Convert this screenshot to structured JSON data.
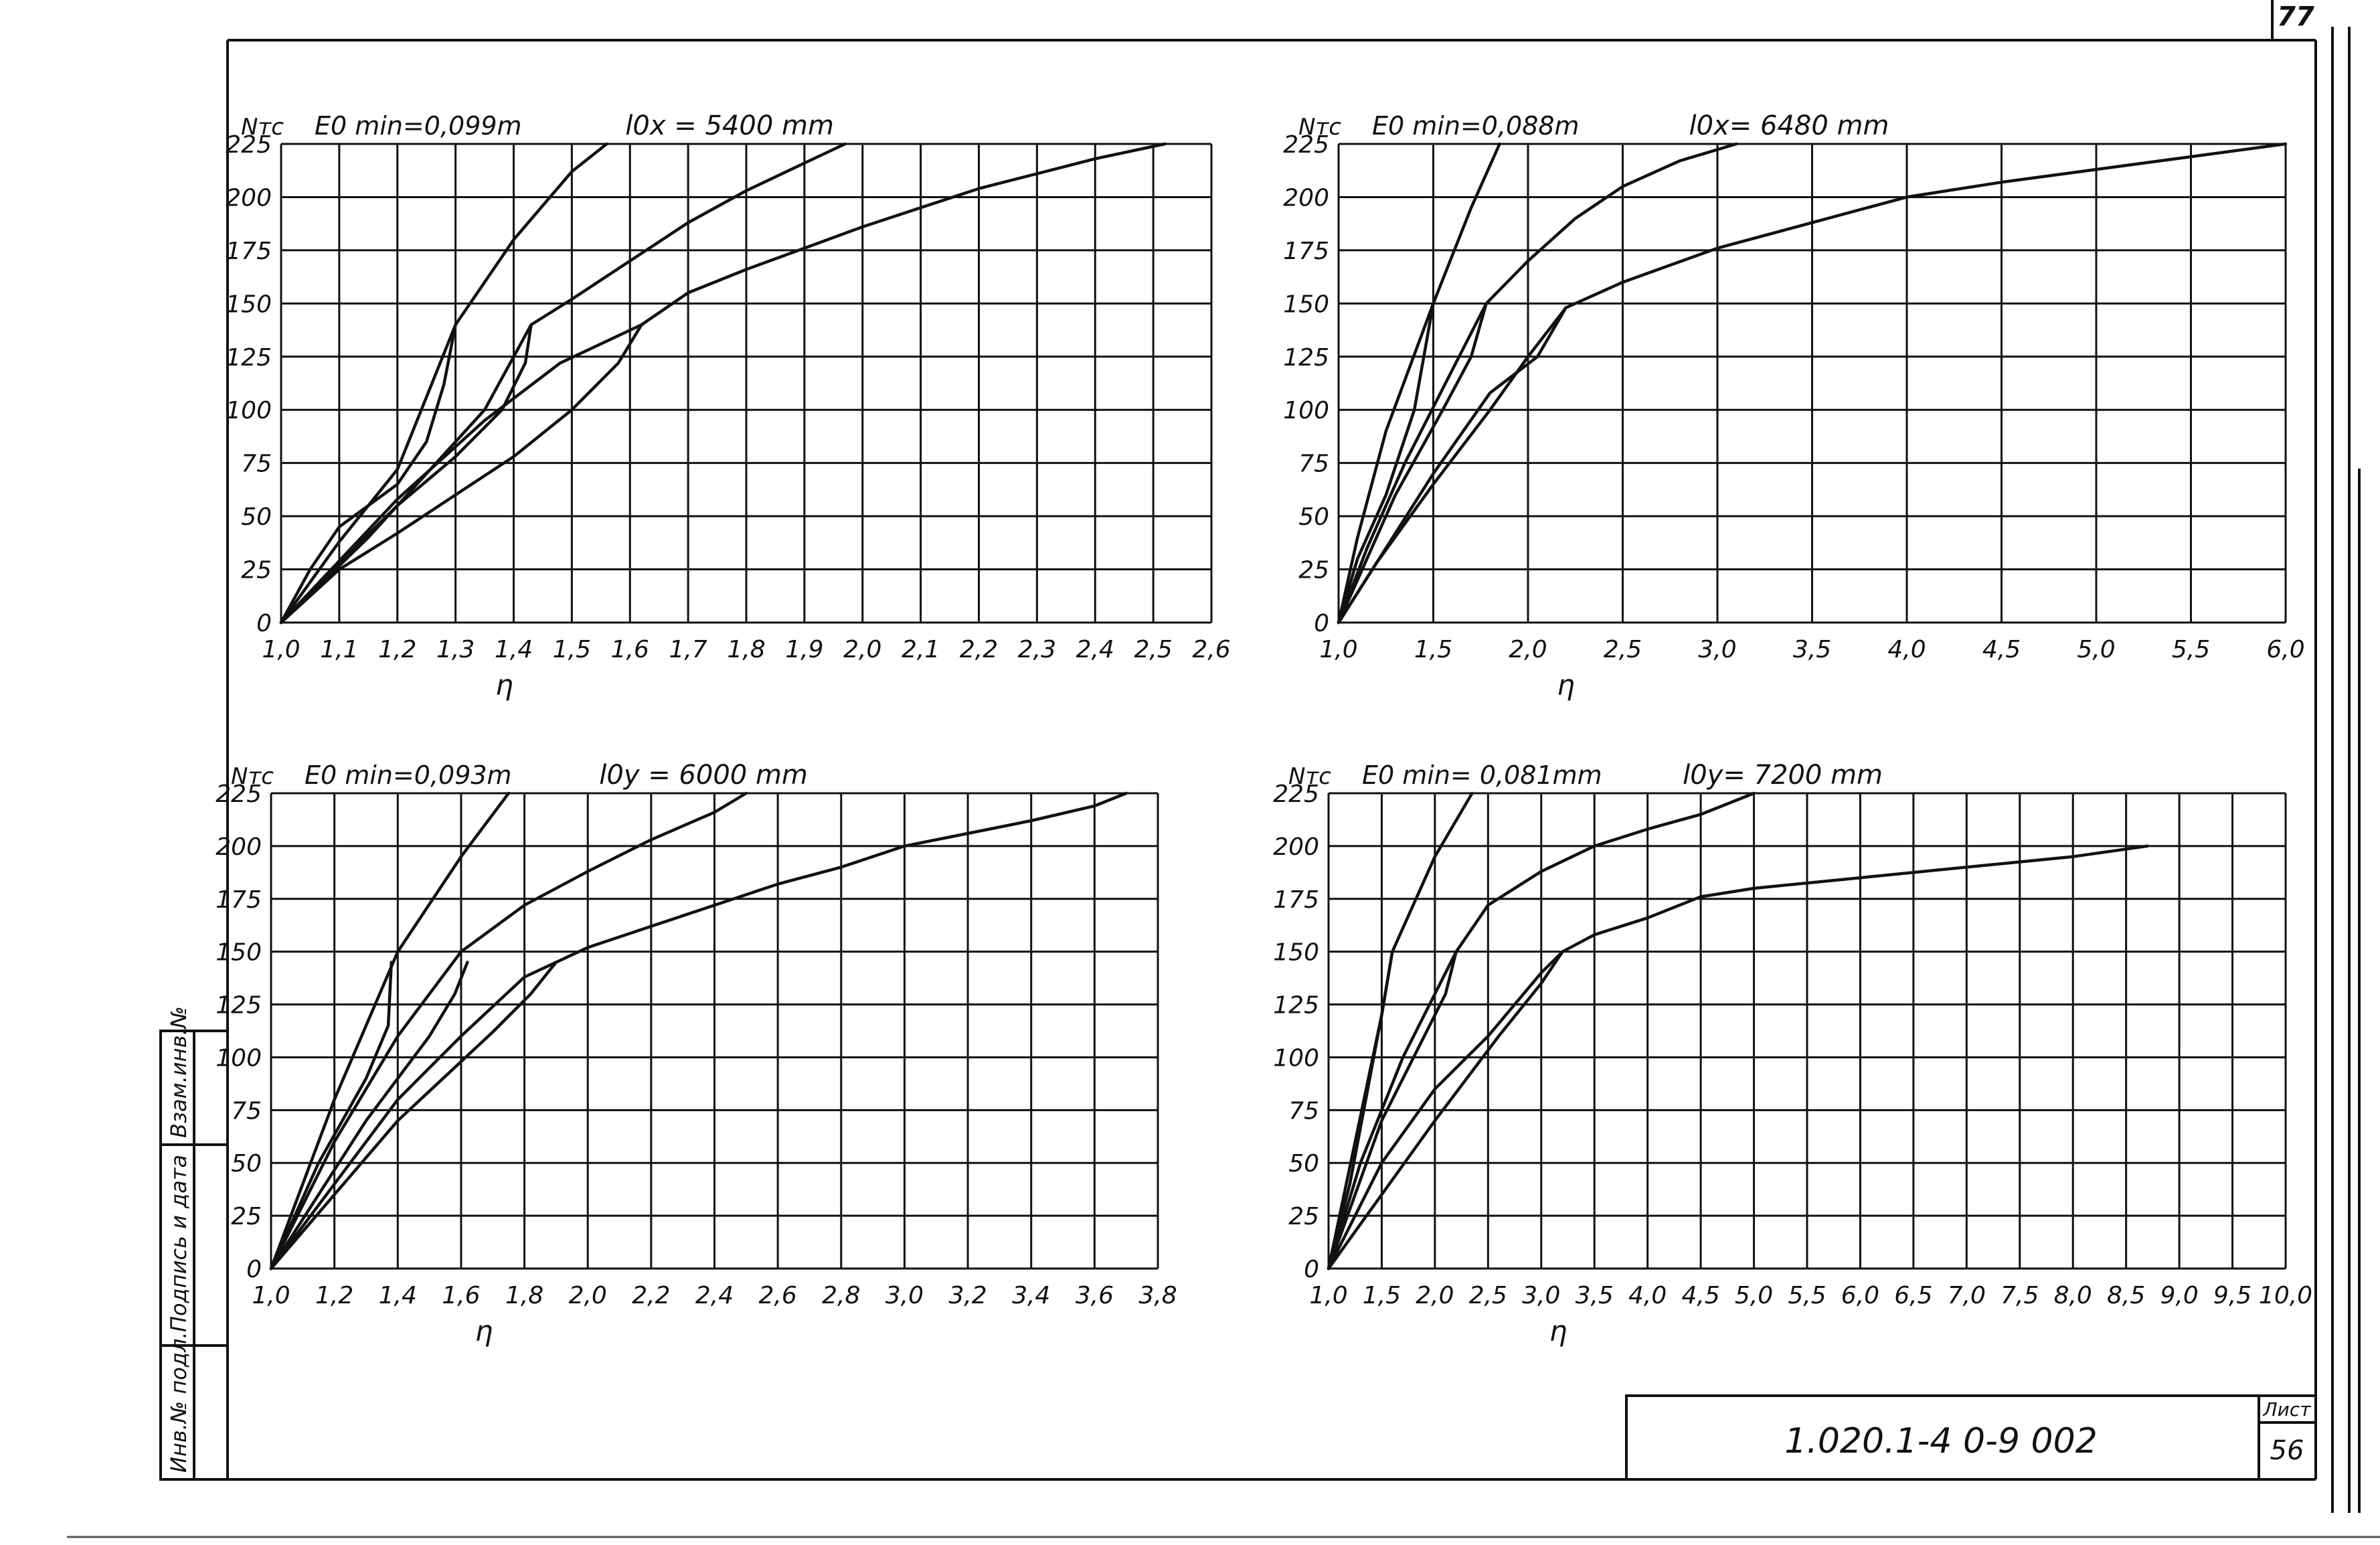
{
  "sheet": {
    "page_number": "77",
    "code": "1.020.1-4  0-9  002",
    "list_label": "Лист",
    "list_number": "56",
    "side_stamp": [
      "Инв.№ подл.",
      "Подпись и дата",
      "Взам.инв.№"
    ]
  },
  "chart_data": [
    {
      "id": "top-left",
      "type": "line",
      "y_label": "Nтс",
      "title_left": "E0 min=0,099m",
      "title_right": "l0x = 5400 mm",
      "xlabel": "η",
      "xticks": [
        1.0,
        1.1,
        1.2,
        1.3,
        1.4,
        1.5,
        1.6,
        1.7,
        1.8,
        1.9,
        2.0,
        2.1,
        2.2,
        2.3,
        2.4,
        2.5,
        2.6
      ],
      "xtick_labels": [
        "1,0",
        "1,1",
        "1,2",
        "1,3",
        "1,4",
        "1,5",
        "1,6",
        "1,7",
        "1,8",
        "1,9",
        "2,0",
        "2,1",
        "2,2",
        "2,3",
        "2,4",
        "2,5",
        "2,6"
      ],
      "yticks": [
        0,
        25,
        50,
        75,
        100,
        125,
        150,
        175,
        200,
        225
      ],
      "ytick_labels": [
        "0",
        "25",
        "50",
        "75",
        "100",
        "125",
        "150",
        "175",
        "200",
        "225"
      ],
      "xlim": [
        1.0,
        2.6
      ],
      "ylim": [
        0,
        225
      ],
      "grid": true,
      "series": [
        {
          "points": [
            [
              1.0,
              0
            ],
            [
              1.1,
              38
            ],
            [
              1.2,
              72
            ],
            [
              1.3,
              140
            ],
            [
              1.4,
              180
            ],
            [
              1.5,
              212
            ],
            [
              1.56,
              225
            ]
          ]
        },
        {
          "points": [
            [
              1.0,
              0
            ],
            [
              1.1,
              28
            ],
            [
              1.2,
              55
            ],
            [
              1.3,
              78
            ],
            [
              1.38,
              100
            ],
            [
              1.42,
              122
            ],
            [
              1.43,
              140
            ],
            [
              1.5,
              152
            ],
            [
              1.6,
              170
            ],
            [
              1.7,
              188
            ],
            [
              1.8,
              203
            ],
            [
              1.9,
              216
            ],
            [
              1.97,
              225
            ]
          ]
        },
        {
          "points": [
            [
              1.0,
              0
            ],
            [
              1.1,
              25
            ],
            [
              1.2,
              42
            ],
            [
              1.3,
              60
            ],
            [
              1.4,
              78
            ],
            [
              1.5,
              100
            ],
            [
              1.58,
              122
            ],
            [
              1.62,
              140
            ],
            [
              1.7,
              155
            ],
            [
              1.8,
              166
            ],
            [
              1.9,
              176
            ],
            [
              2.0,
              186
            ],
            [
              2.1,
              195
            ],
            [
              2.2,
              204
            ],
            [
              2.3,
              211
            ],
            [
              2.4,
              218
            ],
            [
              2.52,
              225
            ]
          ]
        },
        {
          "points": [
            [
              1.0,
              0
            ],
            [
              1.05,
              25
            ],
            [
              1.1,
              45
            ],
            [
              1.2,
              65
            ],
            [
              1.25,
              85
            ],
            [
              1.28,
              112
            ],
            [
              1.3,
              140
            ]
          ]
        },
        {
          "points": [
            [
              1.0,
              0
            ],
            [
              1.15,
              40
            ],
            [
              1.25,
              70
            ],
            [
              1.35,
              100
            ],
            [
              1.43,
              140
            ]
          ]
        },
        {
          "points": [
            [
              1.0,
              0
            ],
            [
              1.2,
              58
            ],
            [
              1.35,
              95
            ],
            [
              1.48,
              122
            ],
            [
              1.62,
              140
            ]
          ]
        }
      ]
    },
    {
      "id": "top-right",
      "type": "line",
      "y_label": "Nтс",
      "title_left": "E0 min=0,088m",
      "title_right": "l0x= 6480 mm",
      "xlabel": "η",
      "xticks": [
        1.0,
        1.5,
        2.0,
        2.5,
        3.0,
        3.5,
        4.0,
        4.5,
        5.0,
        5.5,
        6.0
      ],
      "xtick_labels": [
        "1,0",
        "1,5",
        "2,0",
        "2,5",
        "3,0",
        "3,5",
        "4,0",
        "4,5",
        "5,0",
        "5,5",
        "6,0"
      ],
      "yticks": [
        0,
        25,
        50,
        75,
        100,
        125,
        150,
        175,
        200,
        225
      ],
      "ytick_labels": [
        "0",
        "25",
        "50",
        "75",
        "100",
        "125",
        "150",
        "175",
        "200",
        "225"
      ],
      "xlim": [
        1.0,
        6.0
      ],
      "ylim": [
        0,
        225
      ],
      "grid": true,
      "series": [
        {
          "points": [
            [
              1.0,
              0
            ],
            [
              1.1,
              40
            ],
            [
              1.25,
              90
            ],
            [
              1.5,
              150
            ],
            [
              1.7,
              195
            ],
            [
              1.85,
              225
            ]
          ]
        },
        {
          "points": [
            [
              1.0,
              0
            ],
            [
              1.15,
              35
            ],
            [
              1.35,
              75
            ],
            [
              1.55,
              110
            ],
            [
              1.78,
              150
            ],
            [
              2.0,
              170
            ],
            [
              2.25,
              190
            ],
            [
              2.5,
              205
            ],
            [
              2.8,
              217
            ],
            [
              3.1,
              225
            ]
          ]
        },
        {
          "points": [
            [
              1.0,
              0
            ],
            [
              1.2,
              28
            ],
            [
              1.5,
              65
            ],
            [
              1.8,
              100
            ],
            [
              2.0,
              125
            ],
            [
              2.2,
              148
            ],
            [
              2.5,
              160
            ],
            [
              3.0,
              176
            ],
            [
              3.5,
              188
            ],
            [
              4.0,
              200
            ],
            [
              4.5,
              207
            ],
            [
              5.0,
              213
            ],
            [
              5.5,
              219
            ],
            [
              6.0,
              225
            ]
          ]
        },
        {
          "points": [
            [
              1.0,
              0
            ],
            [
              1.1,
              30
            ],
            [
              1.25,
              60
            ],
            [
              1.4,
              100
            ],
            [
              1.5,
              150
            ]
          ]
        },
        {
          "points": [
            [
              1.0,
              0
            ],
            [
              1.3,
              60
            ],
            [
              1.55,
              100
            ],
            [
              1.7,
              125
            ],
            [
              1.78,
              150
            ]
          ]
        },
        {
          "points": [
            [
              1.0,
              0
            ],
            [
              1.5,
              70
            ],
            [
              1.8,
              108
            ],
            [
              2.05,
              125
            ],
            [
              2.2,
              148
            ]
          ]
        }
      ]
    },
    {
      "id": "bottom-left",
      "type": "line",
      "y_label": "Nтс",
      "title_left": "E0 min=0,093m",
      "title_right": "l0y = 6000 mm",
      "xlabel": "η",
      "xticks": [
        1.0,
        1.2,
        1.4,
        1.6,
        1.8,
        2.0,
        2.2,
        2.4,
        2.6,
        2.8,
        3.0,
        3.2,
        3.4,
        3.6,
        3.8
      ],
      "xtick_labels": [
        "1,0",
        "1,2",
        "1,4",
        "1,6",
        "1,8",
        "2,0",
        "2,2",
        "2,4",
        "2,6",
        "2,8",
        "3,0",
        "3,2",
        "3,4",
        "3,6",
        "3,8"
      ],
      "yticks": [
        0,
        25,
        50,
        75,
        100,
        125,
        150,
        175,
        200,
        225
      ],
      "ytick_labels": [
        "0",
        "25",
        "50",
        "75",
        "100",
        "125",
        "150",
        "175",
        "200",
        "225"
      ],
      "xlim": [
        1.0,
        3.8
      ],
      "ylim": [
        0,
        225
      ],
      "grid": true,
      "series": [
        {
          "points": [
            [
              1.0,
              0
            ],
            [
              1.2,
              80
            ],
            [
              1.4,
              150
            ],
            [
              1.6,
              195
            ],
            [
              1.75,
              225
            ]
          ]
        },
        {
          "points": [
            [
              1.0,
              0
            ],
            [
              1.2,
              60
            ],
            [
              1.4,
              110
            ],
            [
              1.6,
              150
            ],
            [
              1.8,
              172
            ],
            [
              2.0,
              188
            ],
            [
              2.2,
              203
            ],
            [
              2.4,
              216
            ],
            [
              2.5,
              225
            ]
          ]
        },
        {
          "points": [
            [
              1.0,
              0
            ],
            [
              1.2,
              40
            ],
            [
              1.4,
              80
            ],
            [
              1.6,
              110
            ],
            [
              1.8,
              138
            ],
            [
              2.0,
              152
            ],
            [
              2.2,
              162
            ],
            [
              2.4,
              172
            ],
            [
              2.6,
              182
            ],
            [
              2.8,
              190
            ],
            [
              3.0,
              200
            ],
            [
              3.2,
              206
            ],
            [
              3.4,
              212
            ],
            [
              3.6,
              219
            ],
            [
              3.7,
              225
            ]
          ]
        },
        {
          "points": [
            [
              1.0,
              0
            ],
            [
              1.15,
              50
            ],
            [
              1.3,
              90
            ],
            [
              1.37,
              115
            ],
            [
              1.38,
              145
            ]
          ]
        },
        {
          "points": [
            [
              1.0,
              0
            ],
            [
              1.3,
              70
            ],
            [
              1.5,
              110
            ],
            [
              1.58,
              130
            ],
            [
              1.62,
              145
            ]
          ]
        },
        {
          "points": [
            [
              1.0,
              0
            ],
            [
              1.4,
              70
            ],
            [
              1.7,
              112
            ],
            [
              1.82,
              130
            ],
            [
              1.9,
              145
            ]
          ]
        }
      ]
    },
    {
      "id": "bottom-right",
      "type": "line",
      "y_label": "Nтс",
      "title_left": "E0 min= 0,081mm",
      "title_right": "l0y= 7200 mm",
      "xlabel": "η",
      "xticks": [
        1.0,
        1.5,
        2.0,
        2.5,
        3.0,
        3.5,
        4.0,
        4.5,
        5.0,
        5.5,
        6.0,
        6.5,
        7.0,
        7.5,
        8.0,
        8.5,
        9.0,
        9.5,
        10.0
      ],
      "xtick_labels": [
        "1,0",
        "1,5",
        "2,0",
        "2,5",
        "3,0",
        "3,5",
        "4,0",
        "4,5",
        "5,0",
        "5,5",
        "6,0",
        "6,5",
        "7,0",
        "7,5",
        "8,0",
        "8,5",
        "9,0",
        "9,5",
        "10,0"
      ],
      "yticks": [
        0,
        25,
        50,
        75,
        100,
        125,
        150,
        175,
        200,
        225
      ],
      "ytick_labels": [
        "0",
        "25",
        "50",
        "75",
        "100",
        "125",
        "150",
        "175",
        "200",
        "225"
      ],
      "xlim": [
        1.0,
        10.0
      ],
      "ylim": [
        0,
        225
      ],
      "grid": true,
      "series": [
        {
          "points": [
            [
              1.0,
              0
            ],
            [
              1.25,
              60
            ],
            [
              1.5,
              120
            ],
            [
              1.6,
              150
            ],
            [
              2.0,
              195
            ],
            [
              2.35,
              225
            ]
          ]
        },
        {
          "points": [
            [
              1.0,
              0
            ],
            [
              1.3,
              50
            ],
            [
              1.7,
              100
            ],
            [
              2.2,
              150
            ],
            [
              2.5,
              172
            ],
            [
              3.0,
              188
            ],
            [
              3.5,
              200
            ],
            [
              4.0,
              208
            ],
            [
              4.5,
              215
            ],
            [
              5.0,
              225
            ]
          ]
        },
        {
          "points": [
            [
              1.0,
              0
            ],
            [
              1.5,
              50
            ],
            [
              2.0,
              85
            ],
            [
              2.5,
              110
            ],
            [
              3.0,
              140
            ],
            [
              3.2,
              150
            ],
            [
              3.5,
              158
            ],
            [
              4.0,
              166
            ],
            [
              4.5,
              176
            ],
            [
              5.0,
              180
            ],
            [
              6.0,
              185
            ],
            [
              7.0,
              190
            ],
            [
              8.0,
              195
            ],
            [
              8.7,
              200
            ]
          ]
        },
        {
          "points": [
            [
              1.0,
              0
            ],
            [
              1.2,
              40
            ],
            [
              1.35,
              80
            ],
            [
              1.5,
              120
            ],
            [
              1.6,
              150
            ]
          ]
        },
        {
          "points": [
            [
              1.0,
              0
            ],
            [
              1.5,
              70
            ],
            [
              1.9,
              110
            ],
            [
              2.1,
              130
            ],
            [
              2.2,
              150
            ]
          ]
        },
        {
          "points": [
            [
              1.0,
              0
            ],
            [
              2.0,
              70
            ],
            [
              2.6,
              110
            ],
            [
              3.0,
              135
            ],
            [
              3.2,
              150
            ]
          ]
        }
      ]
    }
  ]
}
